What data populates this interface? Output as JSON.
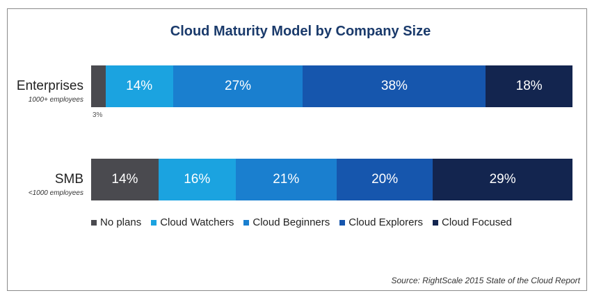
{
  "chart_data": {
    "type": "bar",
    "orientation": "horizontal-stacked-100",
    "title": "Cloud Maturity Model by Company Size",
    "categories": [
      {
        "name": "Enterprises",
        "sub": "1000+ employees"
      },
      {
        "name": "SMB",
        "sub": "<1000 employees"
      }
    ],
    "series": [
      {
        "name": "No plans",
        "color": "#4a4a4f",
        "values": [
          3,
          14
        ],
        "labels": [
          "3%",
          "14%"
        ]
      },
      {
        "name": "Cloud Watchers",
        "color": "#1ba3e0",
        "values": [
          14,
          16
        ],
        "labels": [
          "14%",
          "16%"
        ]
      },
      {
        "name": "Cloud Beginners",
        "color": "#1a7fcf",
        "values": [
          27,
          21
        ],
        "labels": [
          "27%",
          "21%"
        ]
      },
      {
        "name": "Cloud Explorers",
        "color": "#1656ad",
        "values": [
          38,
          20
        ],
        "labels": [
          "38%",
          "20%"
        ]
      },
      {
        "name": "Cloud Focused",
        "color": "#13254f",
        "values": [
          18,
          29
        ],
        "labels": [
          "18%",
          "29%"
        ]
      }
    ],
    "source": "Source: RightScale 2015 State of the Cloud Report"
  }
}
